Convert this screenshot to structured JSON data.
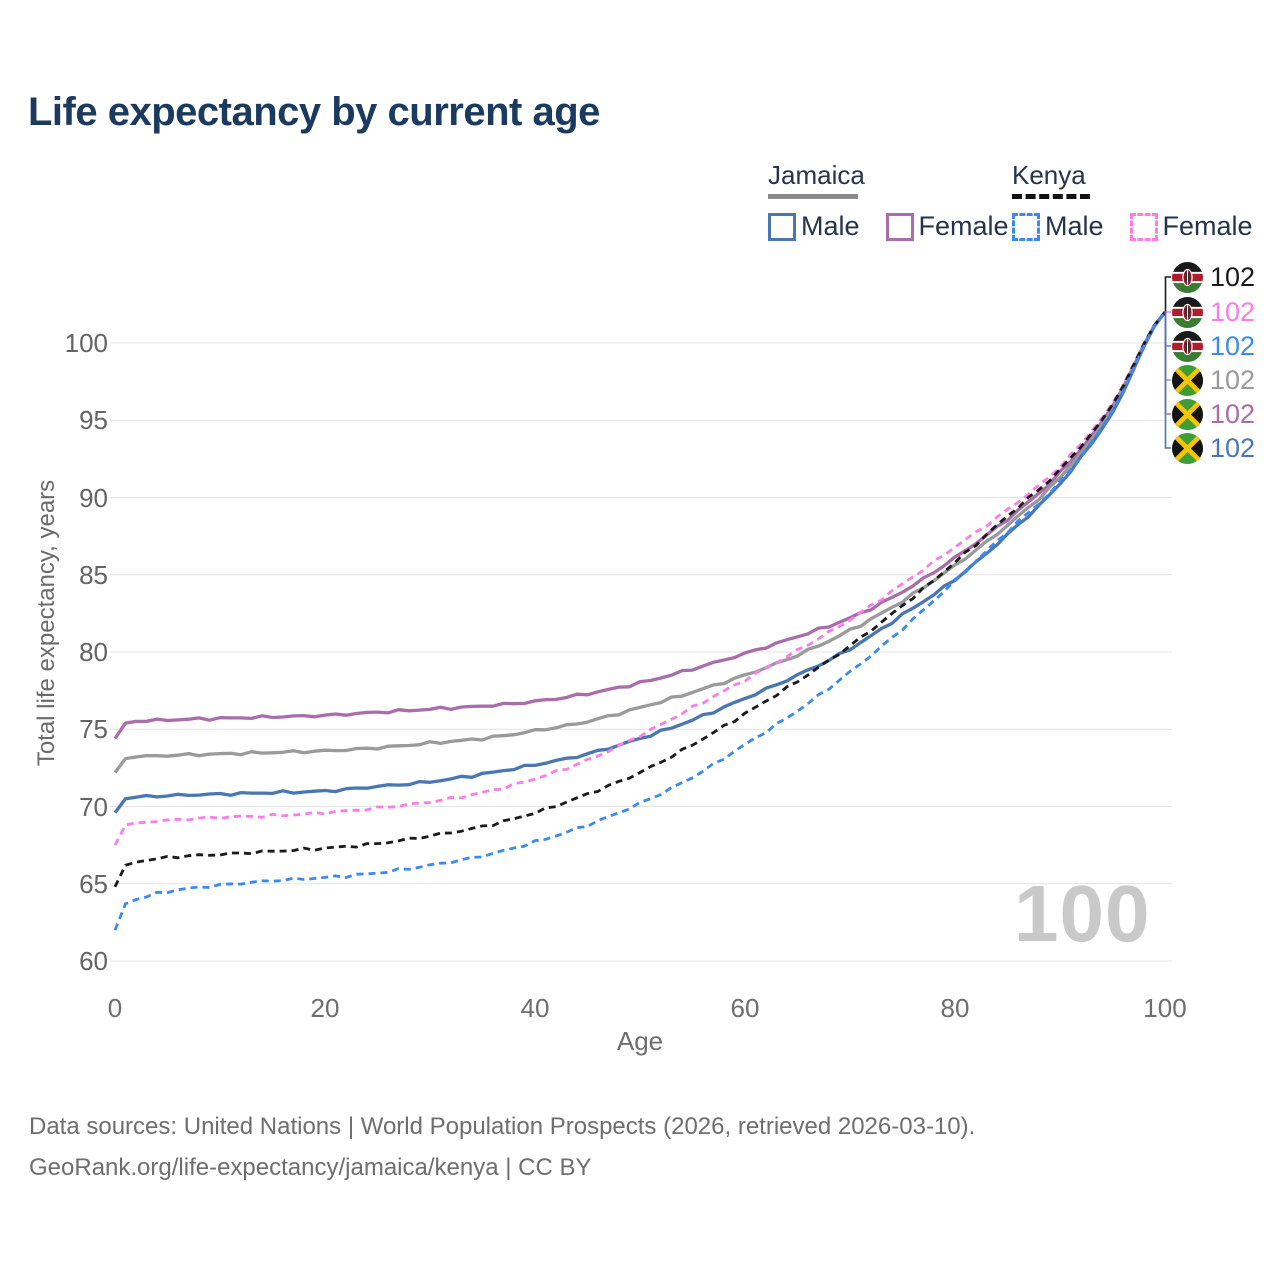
{
  "title": "Life expectancy by current age",
  "legend": {
    "groups": [
      {
        "label": "Jamaica",
        "line_style": "solid",
        "line_color": "#8a8a8a",
        "items": [
          {
            "label": "Male",
            "color": "#4a77b4",
            "dashed": false
          },
          {
            "label": "Female",
            "color": "#a96dab",
            "dashed": false
          }
        ]
      },
      {
        "label": "Kenya",
        "line_style": "dashed",
        "line_color": "#111111",
        "items": [
          {
            "label": "Male",
            "color": "#3b8af2",
            "dashed": true
          },
          {
            "label": "Female",
            "color": "#fc7de8",
            "dashed": true
          }
        ]
      }
    ]
  },
  "watermark": "100",
  "end_labels": [
    {
      "flag": "kenya",
      "series": "Kenya both sexes",
      "value": "102",
      "color": "#1a1a1a"
    },
    {
      "flag": "kenya",
      "series": "Kenya female",
      "value": "102",
      "color": "#fc7de8"
    },
    {
      "flag": "kenya",
      "series": "Kenya male",
      "value": "102",
      "color": "#3b8af2"
    },
    {
      "flag": "jamaica",
      "series": "Jamaica both sexes",
      "value": "102",
      "color": "#9a9a9a"
    },
    {
      "flag": "jamaica",
      "series": "Jamaica female",
      "value": "102",
      "color": "#a96dab"
    },
    {
      "flag": "jamaica",
      "series": "Jamaica male",
      "value": "102",
      "color": "#4a77b4"
    }
  ],
  "footer": {
    "line1": "Data sources: United Nations | World Population Prospects (2026, retrieved 2026-03-10).",
    "line2": "GeoRank.org/life-expectancy/jamaica/kenya | CC BY"
  },
  "chart_data": {
    "type": "line",
    "title": "Life expectancy by current age",
    "xlabel": "Age",
    "ylabel": "Total life expectancy, years",
    "xlim": [
      0,
      100
    ],
    "ylim": [
      60,
      103
    ],
    "xticks": [
      0,
      20,
      40,
      60,
      80,
      100
    ],
    "yticks": [
      60,
      65,
      70,
      75,
      80,
      85,
      90,
      95,
      100
    ],
    "grid": true,
    "legend_position": "top-right",
    "x": [
      0,
      1,
      5,
      10,
      15,
      20,
      25,
      30,
      35,
      40,
      45,
      50,
      55,
      60,
      65,
      70,
      75,
      80,
      85,
      90,
      95,
      100
    ],
    "series": [
      {
        "name": "Jamaica Female",
        "country": "Jamaica",
        "sex": "Female",
        "color": "#a96dab",
        "dashed": false,
        "values": [
          74.4,
          75.4,
          75.6,
          75.7,
          75.8,
          75.9,
          76.1,
          76.3,
          76.5,
          76.8,
          77.3,
          78.0,
          78.9,
          79.9,
          81.0,
          82.2,
          83.9,
          86.1,
          88.6,
          91.6,
          95.9,
          102
        ]
      },
      {
        "name": "Jamaica Both sexes",
        "country": "Jamaica",
        "sex": "Both",
        "color": "#9a9a9a",
        "dashed": false,
        "values": [
          72.2,
          73.1,
          73.3,
          73.4,
          73.5,
          73.6,
          73.8,
          74.1,
          74.4,
          74.9,
          75.5,
          76.4,
          77.4,
          78.5,
          79.8,
          81.4,
          83.3,
          85.6,
          88.2,
          91.3,
          95.7,
          102
        ]
      },
      {
        "name": "Jamaica Male",
        "country": "Jamaica",
        "sex": "Male",
        "color": "#4a77b4",
        "dashed": false,
        "values": [
          69.6,
          70.5,
          70.7,
          70.8,
          70.9,
          71.0,
          71.3,
          71.6,
          72.1,
          72.7,
          73.4,
          74.4,
          75.6,
          77.0,
          78.5,
          80.2,
          82.4,
          84.7,
          87.6,
          90.9,
          95.5,
          102
        ]
      },
      {
        "name": "Kenya Female",
        "country": "Kenya",
        "sex": "Female",
        "color": "#fc7de8",
        "dashed": true,
        "values": [
          67.5,
          68.8,
          69.1,
          69.3,
          69.4,
          69.6,
          69.9,
          70.3,
          70.9,
          71.8,
          73.0,
          74.6,
          76.4,
          78.2,
          80.1,
          82.1,
          84.4,
          86.8,
          89.2,
          92.0,
          96.1,
          102
        ]
      },
      {
        "name": "Kenya Both sexes",
        "country": "Kenya",
        "sex": "Both",
        "color": "#1a1a1a",
        "dashed": true,
        "values": [
          64.8,
          66.2,
          66.7,
          66.9,
          67.1,
          67.3,
          67.6,
          68.1,
          68.7,
          69.6,
          70.8,
          72.2,
          74.0,
          76.0,
          78.1,
          80.4,
          83.0,
          85.8,
          88.8,
          91.8,
          96.0,
          102
        ]
      },
      {
        "name": "Kenya Male",
        "country": "Kenya",
        "sex": "Male",
        "color": "#3b8af2",
        "dashed": true,
        "values": [
          62.0,
          63.7,
          64.5,
          64.9,
          65.2,
          65.4,
          65.7,
          66.2,
          66.8,
          67.7,
          68.8,
          70.2,
          71.9,
          74.0,
          76.2,
          78.7,
          81.5,
          84.6,
          87.8,
          91.0,
          95.6,
          102
        ]
      }
    ]
  }
}
